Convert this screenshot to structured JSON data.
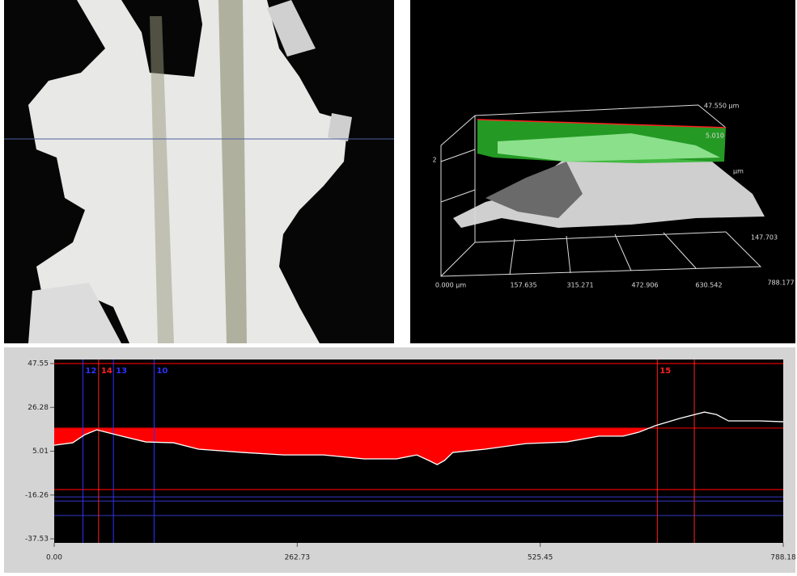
{
  "surface_view": {
    "labels": [
      "47.550 µm",
      "5.010",
      "µm",
      "2",
      "147.703"
    ],
    "axis_labels": [
      "0.000 µm",
      "157.635",
      "315.271",
      "472.906",
      "630.542",
      "788.177"
    ]
  },
  "chart_data": {
    "type": "line",
    "x": [
      0,
      20,
      33,
      46,
      73,
      99,
      129,
      156,
      204,
      248,
      291,
      335,
      370,
      392,
      405,
      414,
      422,
      431,
      466,
      510,
      554,
      589,
      615,
      632,
      650,
      676,
      703,
      716,
      729,
      763,
      788.18
    ],
    "series": [
      {
        "color": "#ffffff",
        "values": [
          7.9,
          9.1,
          13.0,
          15.4,
          12.3,
          9.5,
          9.1,
          6.0,
          4.4,
          3.2,
          3.2,
          1.3,
          1.3,
          3.2,
          0.5,
          -1.5,
          0.5,
          4.4,
          6.0,
          8.7,
          9.5,
          12.3,
          12.3,
          14.2,
          17.4,
          20.9,
          24.0,
          22.8,
          19.7,
          19.7,
          19.3
        ]
      }
    ],
    "fill_reference": 16.2,
    "fill_color": "#ff0000",
    "xlim": [
      0,
      788.18
    ],
    "ylim": [
      -37.53,
      47.55
    ],
    "xticks": [
      {
        "value": 0,
        "label": "0.00"
      },
      262.73,
      525.45,
      788.18
    ],
    "yticks": [
      47.55,
      26.28,
      5.01,
      -16.26,
      -37.53
    ],
    "reference_lines": [
      {
        "value": 47.55,
        "color": "#e00000"
      },
      {
        "value": 16.2,
        "color": "#e00000"
      },
      {
        "value": -13.6,
        "color": "#e00000"
      },
      {
        "value": -17.2,
        "color": "#2a2aa0"
      },
      {
        "value": -19.2,
        "color": "#2a2aa0"
      },
      {
        "value": -26.2,
        "color": "#2a2aa0"
      }
    ],
    "markers": [
      {
        "label": "12",
        "x": 31,
        "color": "#3030ff"
      },
      {
        "label": "14",
        "x": 48,
        "color": "#ff2020"
      },
      {
        "label": "13",
        "x": 64,
        "color": "#3030ff"
      },
      {
        "label": "10",
        "x": 108,
        "color": "#3030ff"
      },
      {
        "label": "15",
        "x": 652,
        "color": "#ff2020"
      },
      {
        "x": 692,
        "color": "#ff2020"
      }
    ]
  }
}
